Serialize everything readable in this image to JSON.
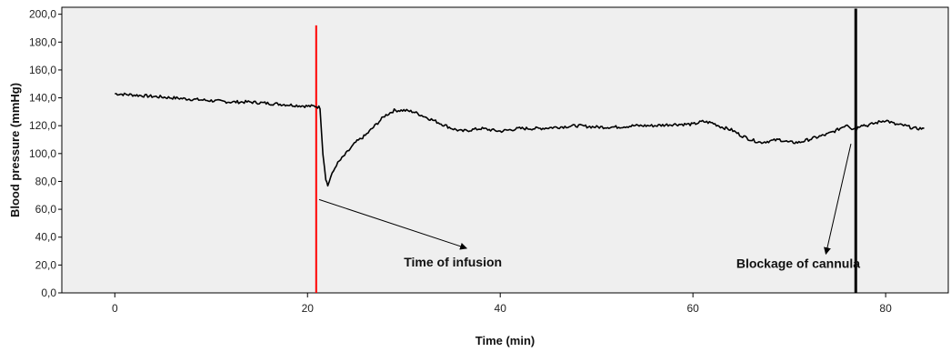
{
  "chart_data": {
    "type": "line",
    "title": "",
    "xlabel": "Time (min)",
    "ylabel": "Blood pressure (mmHg)",
    "xlim": [
      -5.5,
      86.5
    ],
    "ylim": [
      0,
      205
    ],
    "x_ticks": [
      0,
      20,
      40,
      60,
      80
    ],
    "x_tick_labels": [
      "0",
      "20",
      "40",
      "60",
      "80"
    ],
    "y_ticks": [
      0,
      20,
      40,
      60,
      80,
      100,
      120,
      140,
      160,
      180,
      200
    ],
    "y_tick_labels": [
      "0,0",
      "20,0",
      "40,0",
      "60,0",
      "80,0",
      "100,0",
      "120,0",
      "140,0",
      "160,0",
      "180,0",
      "200,0"
    ],
    "grid": false,
    "legend": "none",
    "series": [
      {
        "color": "#000000",
        "points": [
          [
            0,
            143
          ],
          [
            2,
            142
          ],
          [
            4,
            141
          ],
          [
            6,
            140
          ],
          [
            8,
            139
          ],
          [
            10,
            138
          ],
          [
            12,
            137
          ],
          [
            14,
            137
          ],
          [
            16,
            136
          ],
          [
            18,
            135
          ],
          [
            20,
            134
          ],
          [
            20.8,
            134
          ],
          [
            21.3,
            133
          ],
          [
            21.6,
            100
          ],
          [
            21.9,
            82
          ],
          [
            22.1,
            77
          ],
          [
            22.4,
            83
          ],
          [
            23,
            92
          ],
          [
            24,
            100
          ],
          [
            25,
            108
          ],
          [
            26,
            113
          ],
          [
            27,
            120
          ],
          [
            28,
            127
          ],
          [
            29,
            131
          ],
          [
            30,
            131
          ],
          [
            31,
            130
          ],
          [
            32,
            127
          ],
          [
            33,
            124
          ],
          [
            34,
            121
          ],
          [
            35,
            118
          ],
          [
            36,
            116
          ],
          [
            37,
            117
          ],
          [
            38,
            118
          ],
          [
            39,
            117
          ],
          [
            40,
            116
          ],
          [
            41,
            117
          ],
          [
            42,
            118
          ],
          [
            44,
            118
          ],
          [
            46,
            119
          ],
          [
            48,
            120
          ],
          [
            50,
            119
          ],
          [
            52,
            119
          ],
          [
            54,
            120
          ],
          [
            56,
            120
          ],
          [
            58,
            121
          ],
          [
            60,
            121
          ],
          [
            61,
            123
          ],
          [
            62,
            122
          ],
          [
            63,
            119
          ],
          [
            64,
            117
          ],
          [
            65,
            113
          ],
          [
            66,
            110
          ],
          [
            67,
            108
          ],
          [
            68,
            109
          ],
          [
            69,
            110
          ],
          [
            70,
            108
          ],
          [
            71,
            108
          ],
          [
            72,
            110
          ],
          [
            73,
            112
          ],
          [
            74,
            114
          ],
          [
            75,
            117
          ],
          [
            76,
            121
          ],
          [
            76.5,
            118
          ],
          [
            77,
            118
          ],
          [
            77.5,
            121
          ],
          [
            78,
            120
          ],
          [
            79,
            122
          ],
          [
            80,
            124
          ],
          [
            81,
            121
          ],
          [
            82,
            120
          ],
          [
            83,
            118
          ],
          [
            84,
            118
          ]
        ]
      }
    ],
    "markers": [
      {
        "label": "infusion-line",
        "x": 20.9,
        "y_range": [
          0,
          192
        ],
        "color": "#ff0000"
      },
      {
        "label": "blockage-line",
        "x": 76.9,
        "y_range": [
          0,
          204
        ],
        "color": "#000000"
      }
    ],
    "annotations": [
      {
        "text": "Time of infusion",
        "from": [
          21.2,
          67
        ],
        "to": [
          36.5,
          32
        ],
        "text_at": [
          30.0,
          19
        ]
      },
      {
        "text": "Blockage of cannula",
        "from": [
          76.4,
          107
        ],
        "to": [
          73.8,
          28
        ],
        "text_at": [
          64.5,
          18
        ]
      }
    ]
  },
  "colors": {
    "page_background": "#ffffff",
    "plot_background": "#efefef",
    "axis": "#000000"
  }
}
